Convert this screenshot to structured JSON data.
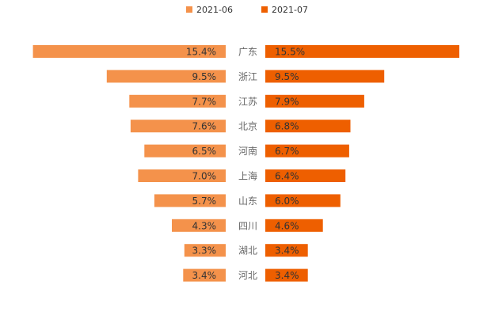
{
  "colors": {
    "left": "#F4924B",
    "right": "#EE5F00"
  },
  "chart_data": {
    "type": "bar",
    "orientation": "horizontal-butterfly",
    "categories": [
      "广东",
      "浙江",
      "江苏",
      "北京",
      "河南",
      "上海",
      "山东",
      "四川",
      "湖北",
      "河北"
    ],
    "series": [
      {
        "name": "2021-06",
        "values": [
          15.4,
          9.5,
          7.7,
          7.6,
          6.5,
          7.0,
          5.7,
          4.3,
          3.3,
          3.4
        ],
        "labels": [
          "15.4%",
          "9.5%",
          "7.7%",
          "7.6%",
          "6.5%",
          "7.0%",
          "5.7%",
          "4.3%",
          "3.3%",
          "3.4%"
        ]
      },
      {
        "name": "2021-07",
        "values": [
          15.5,
          9.5,
          7.9,
          6.8,
          6.7,
          6.4,
          6.0,
          4.6,
          3.4,
          3.4
        ],
        "labels": [
          "15.5%",
          "9.5%",
          "7.9%",
          "6.8%",
          "6.7%",
          "6.4%",
          "6.0%",
          "4.6%",
          "3.4%",
          "3.4%"
        ]
      }
    ],
    "xlim": [
      0,
      15.5
    ],
    "legend": "top-center",
    "grid": false
  }
}
